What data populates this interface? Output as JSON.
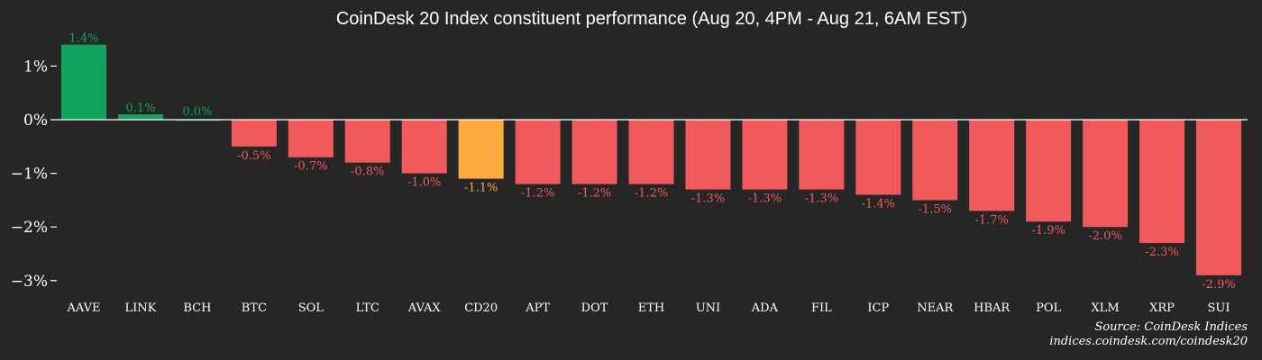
{
  "chart_data": {
    "type": "bar",
    "title": "CoinDesk 20 Index constituent performance (Aug 20, 4PM - Aug 21, 6AM EST)",
    "categories": [
      "AAVE",
      "LINK",
      "BCH",
      "BTC",
      "SOL",
      "LTC",
      "AVAX",
      "CD20",
      "APT",
      "DOT",
      "ETH",
      "UNI",
      "ADA",
      "FIL",
      "ICP",
      "NEAR",
      "HBAR",
      "POL",
      "XLM",
      "XRP",
      "SUI"
    ],
    "values": [
      1.4,
      0.1,
      0.0,
      -0.5,
      -0.7,
      -0.8,
      -1.0,
      -1.1,
      -1.2,
      -1.2,
      -1.2,
      -1.3,
      -1.3,
      -1.3,
      -1.4,
      -1.5,
      -1.7,
      -1.9,
      -2.0,
      -2.3,
      -2.9
    ],
    "data_labels": [
      "1.4%",
      "0.1%",
      "0.0%",
      "-0.5%",
      "-0.7%",
      "-0.8%",
      "-1.0%",
      "-1.1%",
      "-1.2%",
      "-1.2%",
      "-1.2%",
      "-1.3%",
      "-1.3%",
      "-1.3%",
      "-1.4%",
      "-1.5%",
      "-1.7%",
      "-1.9%",
      "-2.0%",
      "-2.3%",
      "-2.9%"
    ],
    "y_ticks": [
      1,
      0,
      -1,
      -2,
      -3
    ],
    "y_tick_labels": [
      "1%",
      "0%",
      "−1%",
      "−2%",
      "−3%"
    ],
    "ylim": [
      -3.3,
      1.5
    ],
    "highlight_category": "CD20",
    "grid": false,
    "legend": "none"
  },
  "colors": {
    "background": "#262626",
    "positive": "#10a35e",
    "negative": "#f05a5c",
    "highlight": "#ffaa40",
    "axis": "#ffffff"
  },
  "source": {
    "line1": "Source: CoinDesk Indices",
    "line2": "indices.coindesk.com/coindesk20"
  }
}
